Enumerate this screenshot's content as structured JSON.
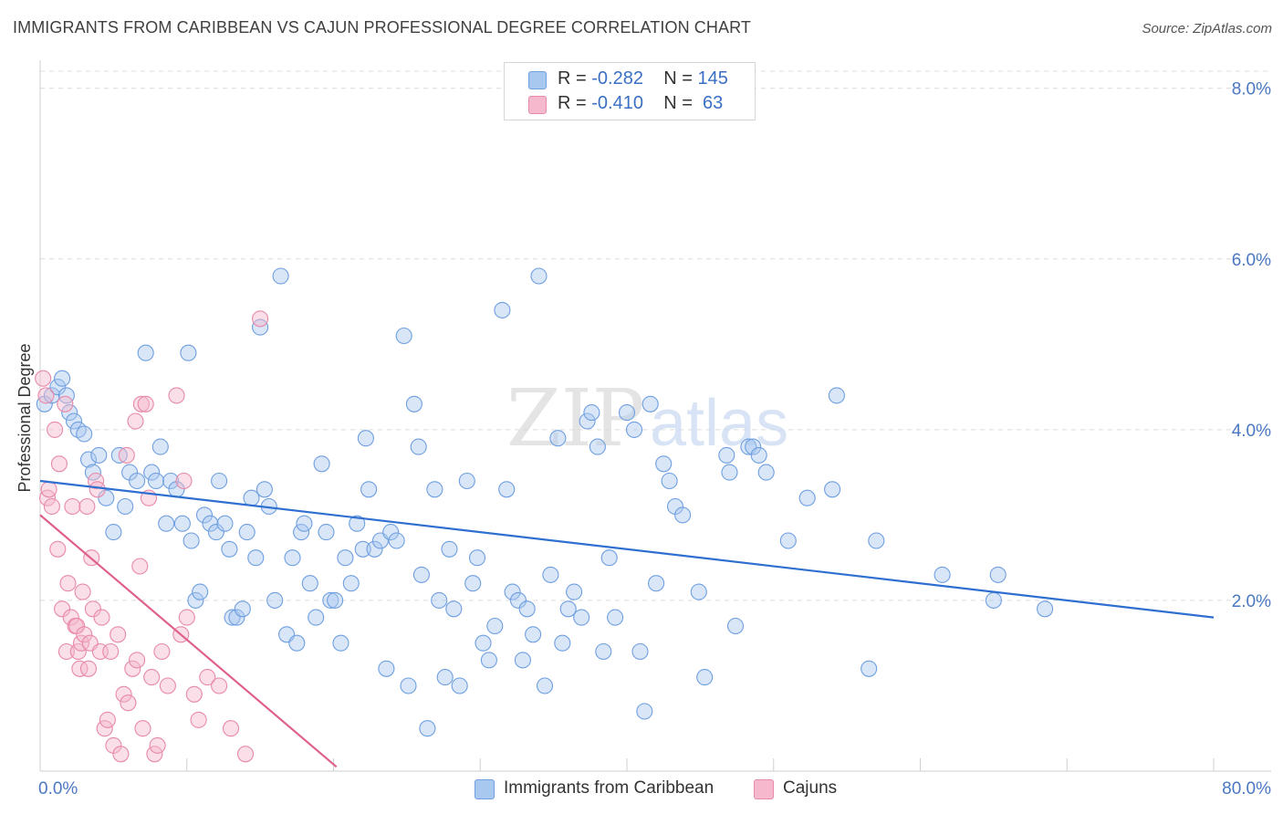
{
  "title": "IMMIGRANTS FROM CARIBBEAN VS CAJUN PROFESSIONAL DEGREE CORRELATION CHART",
  "source": "Source: ZipAtlas.com",
  "watermark": {
    "zip": "ZIP",
    "atlas": "atlas"
  },
  "legend": {
    "rows": [
      {
        "r_label": "R = ",
        "r_value": "-0.282",
        "n_label": "N = ",
        "n_value": "145",
        "color": "#a9c8f0"
      },
      {
        "r_label": "R = ",
        "r_value": "-0.410",
        "n_label": "N = ",
        "n_value": " 63",
        "color": "#f5b8cc"
      }
    ]
  },
  "bottom_legend": [
    {
      "label": "Immigrants from Caribbean",
      "color": "#a9c8f0"
    },
    {
      "label": "Cajuns",
      "color": "#f5b8cc"
    }
  ],
  "chart_data": {
    "type": "scatter",
    "ylabel": "Professional Degree",
    "x_ticks": {
      "min_label": "0.0%",
      "max_label": "80.0%"
    },
    "y_ticks": [
      "2.0%",
      "4.0%",
      "6.0%",
      "8.0%"
    ],
    "xlim": [
      0,
      80
    ],
    "ylim": [
      0,
      8.2
    ],
    "grid": true,
    "series": [
      {
        "name": "Immigrants from Caribbean",
        "color": "#6f9fe0",
        "fill": "#a9c8f0",
        "trend": {
          "x0": 0,
          "y0": 3.4,
          "x1": 80,
          "y1": 1.8,
          "color": "#2f6fd0"
        },
        "points": [
          [
            0.3,
            4.3
          ],
          [
            0.8,
            4.4
          ],
          [
            1.2,
            4.5
          ],
          [
            1.5,
            4.6
          ],
          [
            1.8,
            4.4
          ],
          [
            2.0,
            4.2
          ],
          [
            2.3,
            4.1
          ],
          [
            2.6,
            4.0
          ],
          [
            3.0,
            3.95
          ],
          [
            3.3,
            3.65
          ],
          [
            3.6,
            3.5
          ],
          [
            4.0,
            3.7
          ],
          [
            4.5,
            3.2
          ],
          [
            5.0,
            2.8
          ],
          [
            5.4,
            3.7
          ],
          [
            5.8,
            3.1
          ],
          [
            6.1,
            3.5
          ],
          [
            6.6,
            3.4
          ],
          [
            7.2,
            4.9
          ],
          [
            7.6,
            3.5
          ],
          [
            7.9,
            3.4
          ],
          [
            8.2,
            3.8
          ],
          [
            8.6,
            2.9
          ],
          [
            8.9,
            3.4
          ],
          [
            9.3,
            3.3
          ],
          [
            9.7,
            2.9
          ],
          [
            10.1,
            4.9
          ],
          [
            10.3,
            2.7
          ],
          [
            10.6,
            2.0
          ],
          [
            10.9,
            2.1
          ],
          [
            11.2,
            3.0
          ],
          [
            11.6,
            2.9
          ],
          [
            12.0,
            2.8
          ],
          [
            12.2,
            3.4
          ],
          [
            12.6,
            2.9
          ],
          [
            12.9,
            2.6
          ],
          [
            13.1,
            1.8
          ],
          [
            13.4,
            1.8
          ],
          [
            13.8,
            1.9
          ],
          [
            14.1,
            2.8
          ],
          [
            14.4,
            3.2
          ],
          [
            14.7,
            2.5
          ],
          [
            15.0,
            5.2
          ],
          [
            15.3,
            3.3
          ],
          [
            15.6,
            3.1
          ],
          [
            16.0,
            2.0
          ],
          [
            16.4,
            5.8
          ],
          [
            16.8,
            1.6
          ],
          [
            17.2,
            2.5
          ],
          [
            17.5,
            1.5
          ],
          [
            17.8,
            2.8
          ],
          [
            18.0,
            2.9
          ],
          [
            18.4,
            2.2
          ],
          [
            18.8,
            1.8
          ],
          [
            19.2,
            3.6
          ],
          [
            19.5,
            2.8
          ],
          [
            19.8,
            2.0
          ],
          [
            20.1,
            2.0
          ],
          [
            20.5,
            1.5
          ],
          [
            20.8,
            2.5
          ],
          [
            21.2,
            2.2
          ],
          [
            21.6,
            2.9
          ],
          [
            22.0,
            2.6
          ],
          [
            22.2,
            3.9
          ],
          [
            22.4,
            3.3
          ],
          [
            22.8,
            2.6
          ],
          [
            23.2,
            2.7
          ],
          [
            23.6,
            1.2
          ],
          [
            23.9,
            2.8
          ],
          [
            24.3,
            2.7
          ],
          [
            24.8,
            5.1
          ],
          [
            25.1,
            1.0
          ],
          [
            25.5,
            4.3
          ],
          [
            25.8,
            3.8
          ],
          [
            26.0,
            2.3
          ],
          [
            26.4,
            0.5
          ],
          [
            26.9,
            3.3
          ],
          [
            27.2,
            2.0
          ],
          [
            27.6,
            1.1
          ],
          [
            27.9,
            2.6
          ],
          [
            28.2,
            1.9
          ],
          [
            28.6,
            1.0
          ],
          [
            29.1,
            3.4
          ],
          [
            29.5,
            2.2
          ],
          [
            29.8,
            2.5
          ],
          [
            30.2,
            1.5
          ],
          [
            30.6,
            1.3
          ],
          [
            31.0,
            1.7
          ],
          [
            31.5,
            5.4
          ],
          [
            31.8,
            3.3
          ],
          [
            32.2,
            2.1
          ],
          [
            32.6,
            2.0
          ],
          [
            32.9,
            1.3
          ],
          [
            33.2,
            1.9
          ],
          [
            33.6,
            1.6
          ],
          [
            34.0,
            5.8
          ],
          [
            34.4,
            1.0
          ],
          [
            34.8,
            2.3
          ],
          [
            35.3,
            3.9
          ],
          [
            35.6,
            1.5
          ],
          [
            36.0,
            1.9
          ],
          [
            36.4,
            2.1
          ],
          [
            36.9,
            1.8
          ],
          [
            37.3,
            4.1
          ],
          [
            37.6,
            4.2
          ],
          [
            38.0,
            3.8
          ],
          [
            38.4,
            1.4
          ],
          [
            38.8,
            2.5
          ],
          [
            39.2,
            1.8
          ],
          [
            40.0,
            4.2
          ],
          [
            40.5,
            4.0
          ],
          [
            40.9,
            1.4
          ],
          [
            41.2,
            0.7
          ],
          [
            41.6,
            4.3
          ],
          [
            42.0,
            2.2
          ],
          [
            42.5,
            3.6
          ],
          [
            42.9,
            3.4
          ],
          [
            43.3,
            3.1
          ],
          [
            43.8,
            3.0
          ],
          [
            44.9,
            2.1
          ],
          [
            45.3,
            1.1
          ],
          [
            46.8,
            3.7
          ],
          [
            47.0,
            3.5
          ],
          [
            47.4,
            1.7
          ],
          [
            48.3,
            3.8
          ],
          [
            48.6,
            3.8
          ],
          [
            49.0,
            3.7
          ],
          [
            49.5,
            3.5
          ],
          [
            51.0,
            2.7
          ],
          [
            52.3,
            3.2
          ],
          [
            54.0,
            3.3
          ],
          [
            54.3,
            4.4
          ],
          [
            56.5,
            1.2
          ],
          [
            57.0,
            2.7
          ],
          [
            61.5,
            2.3
          ],
          [
            65.0,
            2.0
          ],
          [
            65.3,
            2.3
          ],
          [
            68.5,
            1.9
          ]
        ]
      },
      {
        "name": "Cajuns",
        "color": "#e889a8",
        "fill": "#f5b8cc",
        "trend": {
          "x0": 0,
          "y0": 3.0,
          "x1": 20.2,
          "y1": 0.05,
          "color": "#e0608c"
        },
        "points": [
          [
            0.2,
            4.6
          ],
          [
            0.4,
            4.4
          ],
          [
            0.5,
            3.2
          ],
          [
            0.6,
            3.3
          ],
          [
            0.8,
            3.1
          ],
          [
            1.0,
            4.0
          ],
          [
            1.2,
            2.6
          ],
          [
            1.3,
            3.6
          ],
          [
            1.5,
            1.9
          ],
          [
            1.7,
            4.3
          ],
          [
            1.8,
            1.4
          ],
          [
            1.9,
            2.2
          ],
          [
            2.1,
            1.8
          ],
          [
            2.2,
            3.1
          ],
          [
            2.4,
            1.7
          ],
          [
            2.5,
            1.7
          ],
          [
            2.6,
            1.4
          ],
          [
            2.7,
            1.2
          ],
          [
            2.8,
            1.5
          ],
          [
            2.9,
            2.1
          ],
          [
            3.0,
            1.6
          ],
          [
            3.2,
            3.1
          ],
          [
            3.3,
            1.2
          ],
          [
            3.4,
            1.5
          ],
          [
            3.5,
            2.5
          ],
          [
            3.6,
            1.9
          ],
          [
            3.8,
            3.4
          ],
          [
            3.9,
            3.3
          ],
          [
            4.1,
            1.4
          ],
          [
            4.2,
            1.8
          ],
          [
            4.4,
            0.5
          ],
          [
            4.6,
            0.6
          ],
          [
            4.8,
            1.4
          ],
          [
            5.0,
            0.3
          ],
          [
            5.3,
            1.6
          ],
          [
            5.5,
            0.2
          ],
          [
            5.7,
            0.9
          ],
          [
            5.9,
            3.7
          ],
          [
            6.0,
            0.8
          ],
          [
            6.3,
            1.2
          ],
          [
            6.5,
            4.1
          ],
          [
            6.6,
            1.3
          ],
          [
            6.8,
            2.4
          ],
          [
            6.9,
            4.3
          ],
          [
            7.0,
            0.5
          ],
          [
            7.2,
            4.3
          ],
          [
            7.4,
            3.2
          ],
          [
            7.6,
            1.1
          ],
          [
            7.8,
            0.2
          ],
          [
            8.0,
            0.3
          ],
          [
            8.3,
            1.4
          ],
          [
            8.7,
            1.0
          ],
          [
            9.3,
            4.4
          ],
          [
            9.6,
            1.6
          ],
          [
            9.8,
            3.4
          ],
          [
            10.0,
            1.8
          ],
          [
            10.5,
            0.9
          ],
          [
            10.8,
            0.6
          ],
          [
            11.4,
            1.1
          ],
          [
            12.2,
            1.0
          ],
          [
            13.0,
            0.5
          ],
          [
            14.0,
            0.2
          ],
          [
            15.0,
            5.3
          ]
        ]
      }
    ]
  }
}
